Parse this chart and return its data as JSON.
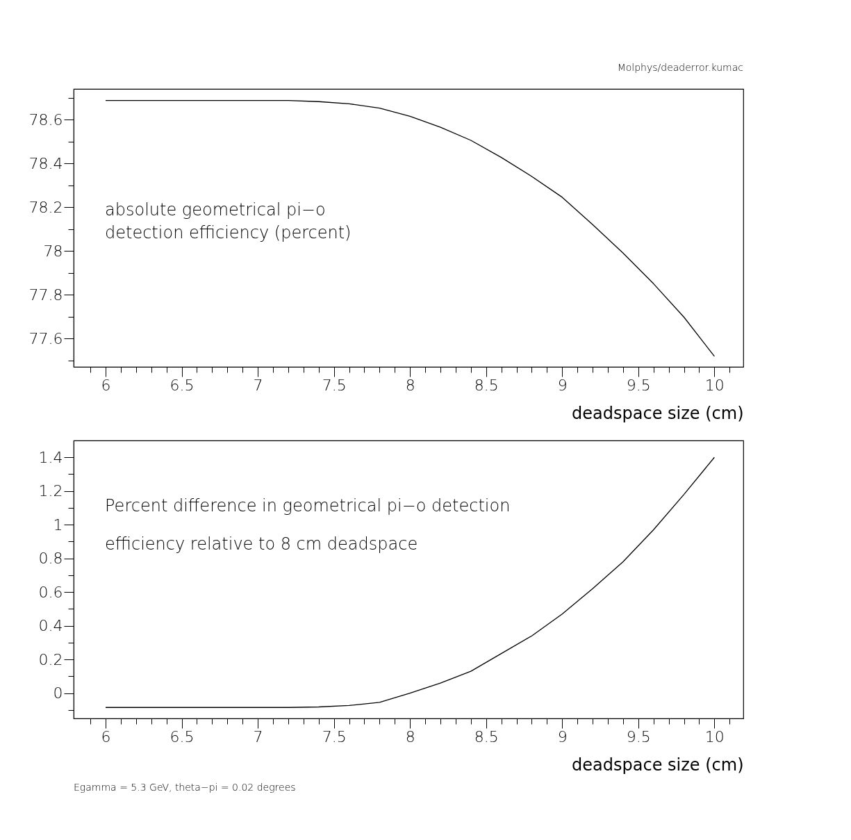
{
  "chart_data": [
    {
      "type": "line",
      "xlabel": "deadspace size (cm)",
      "annotations": [
        "Molphys/deaderror.kumac",
        "absolute geometrical pi−o",
        "detection efficiency (percent)"
      ],
      "x": [
        6,
        6.2,
        6.4,
        6.6,
        6.8,
        7.0,
        7.2,
        7.4,
        7.6,
        7.8,
        8.0,
        8.2,
        8.4,
        8.6,
        8.8,
        9.0,
        9.2,
        9.4,
        9.6,
        9.8,
        10
      ],
      "series": [
        {
          "color": "#000000",
          "values": [
            78.687,
            78.687,
            78.687,
            78.687,
            78.687,
            78.687,
            78.687,
            78.682,
            78.672,
            78.652,
            78.615,
            78.565,
            78.505,
            78.427,
            78.34,
            78.245,
            78.12,
            77.99,
            77.85,
            77.697,
            77.518
          ]
        }
      ],
      "xlim": [
        5.79,
        10.19
      ],
      "xticks": [
        {
          "value": 5.9,
          "label": null
        },
        6,
        {
          "value": 6.1,
          "label": null
        },
        {
          "value": 6.2,
          "label": null
        },
        {
          "value": 6.3,
          "label": null
        },
        {
          "value": 6.4,
          "label": null
        },
        6.5,
        {
          "value": 6.6,
          "label": null
        },
        {
          "value": 6.7,
          "label": null
        },
        {
          "value": 6.8,
          "label": null
        },
        {
          "value": 6.9,
          "label": null
        },
        7,
        {
          "value": 7.1,
          "label": null
        },
        {
          "value": 7.2,
          "label": null
        },
        {
          "value": 7.3,
          "label": null
        },
        {
          "value": 7.4,
          "label": null
        },
        7.5,
        {
          "value": 7.6,
          "label": null
        },
        {
          "value": 7.7,
          "label": null
        },
        {
          "value": 7.8,
          "label": null
        },
        {
          "value": 7.9,
          "label": null
        },
        8,
        {
          "value": 8.1,
          "label": null
        },
        {
          "value": 8.2,
          "label": null
        },
        {
          "value": 8.3,
          "label": null
        },
        {
          "value": 8.4,
          "label": null
        },
        8.5,
        {
          "value": 8.6,
          "label": null
        },
        {
          "value": 8.7,
          "label": null
        },
        {
          "value": 8.8,
          "label": null
        },
        {
          "value": 8.9,
          "label": null
        },
        9,
        {
          "value": 9.1,
          "label": null
        },
        {
          "value": 9.2,
          "label": null
        },
        {
          "value": 9.3,
          "label": null
        },
        {
          "value": 9.4,
          "label": null
        },
        9.5,
        {
          "value": 9.6,
          "label": null
        },
        {
          "value": 9.7,
          "label": null
        },
        {
          "value": 9.8,
          "label": null
        },
        {
          "value": 9.9,
          "label": null
        },
        10,
        {
          "value": 10.1,
          "label": null
        }
      ],
      "ylim": [
        77.47,
        78.74
      ],
      "yticks": [
        {
          "value": 77.5,
          "label": null
        },
        77.6,
        {
          "value": 77.7,
          "label": null
        },
        77.8,
        {
          "value": 77.9,
          "label": null
        },
        78,
        {
          "value": 78.1,
          "label": null
        },
        78.2,
        {
          "value": 78.3,
          "label": null
        },
        78.4,
        {
          "value": 78.5,
          "label": null
        },
        78.6,
        {
          "value": 78.7,
          "label": null
        }
      ],
      "marker": "none",
      "line_style": "solid"
    },
    {
      "type": "line",
      "xlabel": "deadspace size (cm)",
      "annotations": [
        "Percent difference in geometrical pi−o detection",
        "efficiency relative to 8 cm deadspace",
        "Egamma = 5.3 GeV, theta−pi = 0.02 degrees"
      ],
      "x": [
        6,
        6.2,
        6.4,
        6.6,
        6.8,
        7.0,
        7.2,
        7.4,
        7.6,
        7.8,
        8.0,
        8.2,
        8.4,
        8.6,
        8.8,
        9.0,
        9.2,
        9.4,
        9.6,
        9.8,
        10
      ],
      "series": [
        {
          "color": "#000000",
          "values": [
            -0.085,
            -0.085,
            -0.085,
            -0.085,
            -0.085,
            -0.085,
            -0.085,
            -0.082,
            -0.073,
            -0.055,
            0.0,
            0.06,
            0.13,
            0.235,
            0.34,
            0.47,
            0.62,
            0.78,
            0.97,
            1.18,
            1.4
          ]
        }
      ],
      "xlim": [
        5.79,
        10.19
      ],
      "xticks": [
        {
          "value": 5.9,
          "label": null
        },
        6,
        {
          "value": 6.1,
          "label": null
        },
        {
          "value": 6.2,
          "label": null
        },
        {
          "value": 6.3,
          "label": null
        },
        {
          "value": 6.4,
          "label": null
        },
        6.5,
        {
          "value": 6.6,
          "label": null
        },
        {
          "value": 6.7,
          "label": null
        },
        {
          "value": 6.8,
          "label": null
        },
        {
          "value": 6.9,
          "label": null
        },
        7,
        {
          "value": 7.1,
          "label": null
        },
        {
          "value": 7.2,
          "label": null
        },
        {
          "value": 7.3,
          "label": null
        },
        {
          "value": 7.4,
          "label": null
        },
        7.5,
        {
          "value": 7.6,
          "label": null
        },
        {
          "value": 7.7,
          "label": null
        },
        {
          "value": 7.8,
          "label": null
        },
        {
          "value": 7.9,
          "label": null
        },
        8,
        {
          "value": 8.1,
          "label": null
        },
        {
          "value": 8.2,
          "label": null
        },
        {
          "value": 8.3,
          "label": null
        },
        {
          "value": 8.4,
          "label": null
        },
        8.5,
        {
          "value": 8.6,
          "label": null
        },
        {
          "value": 8.7,
          "label": null
        },
        {
          "value": 8.8,
          "label": null
        },
        {
          "value": 8.9,
          "label": null
        },
        9,
        {
          "value": 9.1,
          "label": null
        },
        {
          "value": 9.2,
          "label": null
        },
        {
          "value": 9.3,
          "label": null
        },
        {
          "value": 9.4,
          "label": null
        },
        9.5,
        {
          "value": 9.6,
          "label": null
        },
        {
          "value": 9.7,
          "label": null
        },
        {
          "value": 9.8,
          "label": null
        },
        {
          "value": 9.9,
          "label": null
        },
        10,
        {
          "value": 10.1,
          "label": null
        }
      ],
      "ylim": [
        -0.15,
        1.5
      ],
      "yticks": [
        {
          "value": -0.1,
          "label": null
        },
        0,
        {
          "value": 0.1,
          "label": null
        },
        0.2,
        {
          "value": 0.3,
          "label": null
        },
        0.4,
        {
          "value": 0.5,
          "label": null
        },
        0.6,
        {
          "value": 0.7,
          "label": null
        },
        0.8,
        {
          "value": 0.9,
          "label": null
        },
        1,
        {
          "value": 1.1,
          "label": null
        },
        1.2,
        {
          "value": 1.3,
          "label": null
        },
        1.4
      ],
      "marker": "none",
      "line_style": "solid"
    }
  ]
}
